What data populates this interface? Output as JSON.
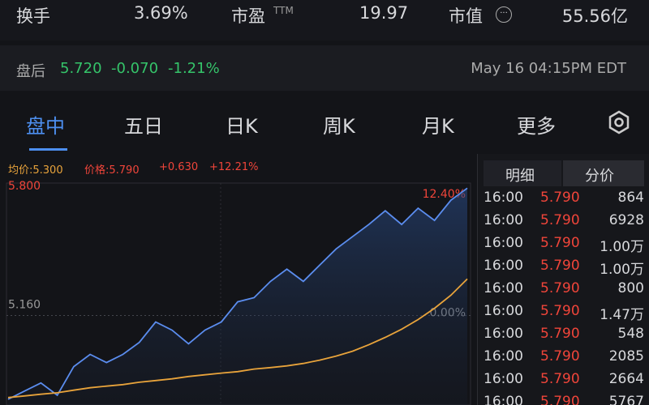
{
  "stats": [
    {
      "label": "换手",
      "value": "3.69%"
    },
    {
      "label": "市盈",
      "sup": "TTM",
      "value": "19.97"
    },
    {
      "label": "市值",
      "value": "55.56亿"
    }
  ],
  "after_hours": {
    "label": "盘后",
    "price": "5.720",
    "change": "-0.070",
    "percent": "-1.21%",
    "time": "May 16 04:15PM EDT"
  },
  "tabs": [
    "盘中",
    "五日",
    "日K",
    "周K",
    "月K",
    "更多"
  ],
  "quote": {
    "avg": "均价:5.300",
    "price": "价格:5.790",
    "change": "+0.630",
    "percent": "+12.21%"
  },
  "chart_data": {
    "type": "line",
    "series": [
      {
        "color": "#5b8def",
        "values": [
          4.651,
          4.695,
          4.739,
          4.673,
          4.827,
          4.893,
          4.849,
          4.893,
          4.958,
          5.068,
          5.024,
          4.95,
          5.024,
          5.068,
          5.177,
          5.199,
          5.287,
          5.353,
          5.287,
          5.375,
          5.462,
          5.528,
          5.594,
          5.668,
          5.594,
          5.682,
          5.616,
          5.725,
          5.79
        ]
      },
      {
        "color": "#e8a33b",
        "values": [
          4.66,
          4.669,
          4.678,
          4.686,
          4.7,
          4.713,
          4.722,
          4.73,
          4.743,
          4.752,
          4.761,
          4.774,
          4.783,
          4.792,
          4.8,
          4.814,
          4.822,
          4.831,
          4.844,
          4.862,
          4.884,
          4.91,
          4.945,
          4.985,
          5.029,
          5.081,
          5.142,
          5.212,
          5.3
        ]
      }
    ],
    "ylim": [
      4.62,
      5.8
    ],
    "yticks": [
      {
        "value": 5.8,
        "label": "5.800"
      },
      {
        "value": 5.16,
        "label": "5.160"
      }
    ],
    "y2lim": [
      -10.47,
      12.4
    ],
    "y2ticks": [
      {
        "value": 12.4,
        "label": "12.40%"
      },
      {
        "value": 0,
        "label": "0.00%"
      }
    ]
  },
  "trade_tabs": [
    "明细",
    "分价"
  ],
  "trades": [
    [
      "16:00",
      "5.790",
      "864"
    ],
    [
      "16:00",
      "5.790",
      "6928"
    ],
    [
      "16:00",
      "5.790",
      "1.00万"
    ],
    [
      "16:00",
      "5.790",
      "1.00万"
    ],
    [
      "16:00",
      "5.790",
      "800"
    ],
    [
      "16:00",
      "5.790",
      "1.47万"
    ],
    [
      "16:00",
      "5.790",
      "548"
    ],
    [
      "16:00",
      "5.790",
      "2085"
    ],
    [
      "16:00",
      "5.790",
      "2664"
    ],
    [
      "16:00",
      "5.790",
      "5767"
    ]
  ]
}
